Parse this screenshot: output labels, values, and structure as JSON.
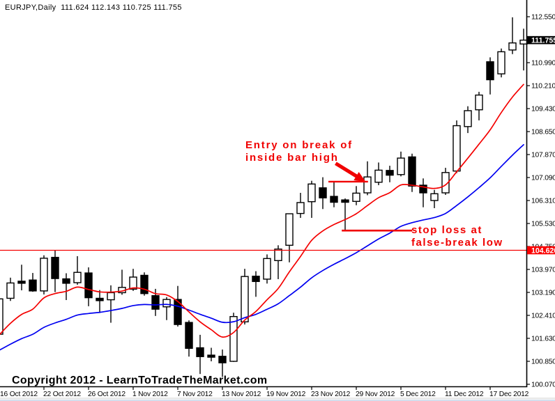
{
  "header": {
    "symbol_period": "EURJPY,Daily",
    "spacer": "  ",
    "ohlc_text": "111.624 112.143 110.725 111.755"
  },
  "watermark": "Copyright 2012 - LearnToTradeTheMarket.com",
  "annotations": {
    "entry_text_line1": "Entry on break of",
    "entry_text_line2": "inside bar high",
    "stop_text_line1": "stop loss at",
    "stop_text_line2": "false-break low"
  },
  "colors": {
    "background": "#ffffff",
    "bull_candle_fill": "#ffffff",
    "bear_candle_fill": "#000000",
    "candle_outline": "#000000",
    "ema_fast": "#f40000",
    "ema_slow": "#0000f0",
    "hline": "#f40000",
    "annotation": "#f00000",
    "axis": "#000000",
    "current_price_box_bg": "#000000",
    "current_price_box_text": "#ffffff",
    "hline_price_box_bg": "#fa0000",
    "hline_price_box_text": "#ffffff"
  },
  "chart_data": {
    "type": "candlestick",
    "symbol": "EURJPY",
    "timeframe": "Daily",
    "last_ohlc": {
      "open": 111.624,
      "high": 112.143,
      "low": 110.725,
      "close": 111.755
    },
    "y_axis": {
      "tick_values": [
        100.07,
        100.85,
        101.63,
        102.41,
        103.19,
        103.97,
        104.75,
        105.53,
        106.31,
        107.09,
        107.87,
        108.65,
        109.43,
        110.21,
        110.99,
        111.77,
        112.55
      ],
      "tick_decimals": 3,
      "current_price": 111.755,
      "hline_price": 104.62
    },
    "x_axis": {
      "tick_every_n_candles": 4,
      "tick_labels": [
        "16 Oct 2012",
        "22 Oct 2012",
        "26 Oct 2012",
        "1 Nov 2012",
        "7 Nov 2012",
        "13 Nov 2012",
        "19 Nov 2012",
        "23 Nov 2012",
        "29 Nov 2012",
        "5 Dec 2012",
        "11 Dec 2012",
        "17 Dec 2012"
      ]
    },
    "candles": [
      {
        "date": "16 Oct 2012",
        "o": 101.77,
        "h": 102.98,
        "l": 101.72,
        "c": 102.97
      },
      {
        "date": "17 Oct 2012",
        "o": 102.99,
        "h": 103.69,
        "l": 102.9,
        "c": 103.51
      },
      {
        "date": "18 Oct 2012",
        "o": 103.57,
        "h": 104.13,
        "l": 103.26,
        "c": 103.5
      },
      {
        "date": "19 Oct 2012",
        "o": 103.61,
        "h": 103.85,
        "l": 103.21,
        "c": 103.24
      },
      {
        "date": "22 Oct 2012",
        "o": 103.24,
        "h": 104.45,
        "l": 103.12,
        "c": 104.35
      },
      {
        "date": "23 Oct 2012",
        "o": 104.38,
        "h": 104.62,
        "l": 103.2,
        "c": 103.66
      },
      {
        "date": "24 Oct 2012",
        "o": 103.65,
        "h": 103.84,
        "l": 102.93,
        "c": 103.5
      },
      {
        "date": "25 Oct 2012",
        "o": 103.52,
        "h": 104.42,
        "l": 103.45,
        "c": 103.87
      },
      {
        "date": "26 Oct 2012",
        "o": 103.85,
        "h": 104.04,
        "l": 102.72,
        "c": 103.01
      },
      {
        "date": "29 Oct 2012",
        "o": 102.99,
        "h": 103.27,
        "l": 102.49,
        "c": 102.91
      },
      {
        "date": "30 Oct 2012",
        "o": 102.94,
        "h": 103.43,
        "l": 102.16,
        "c": 103.18
      },
      {
        "date": "31 Oct 2012",
        "o": 103.18,
        "h": 103.96,
        "l": 103.11,
        "c": 103.36
      },
      {
        "date": "1 Nov 2012",
        "o": 103.3,
        "h": 103.99,
        "l": 103.24,
        "c": 103.71
      },
      {
        "date": "2 Nov 2012",
        "o": 103.77,
        "h": 103.87,
        "l": 103.08,
        "c": 103.15
      },
      {
        "date": "5 Nov 2012",
        "o": 103.08,
        "h": 103.31,
        "l": 102.39,
        "c": 102.62
      },
      {
        "date": "6 Nov 2012",
        "o": 102.7,
        "h": 103.03,
        "l": 102.25,
        "c": 102.95
      },
      {
        "date": "7 Nov 2012",
        "o": 102.95,
        "h": 103.41,
        "l": 102.03,
        "c": 102.1
      },
      {
        "date": "8 Nov 2012",
        "o": 102.17,
        "h": 102.24,
        "l": 101.01,
        "c": 101.29
      },
      {
        "date": "9 Nov 2012",
        "o": 101.31,
        "h": 101.75,
        "l": 100.42,
        "c": 101.01
      },
      {
        "date": "12 Nov 2012",
        "o": 101.06,
        "h": 101.31,
        "l": 100.85,
        "c": 100.99
      },
      {
        "date": "13 Nov 2012",
        "o": 101.02,
        "h": 101.25,
        "l": 100.32,
        "c": 100.8
      },
      {
        "date": "14 Nov 2012",
        "o": 100.85,
        "h": 102.5,
        "l": 100.83,
        "c": 102.37
      },
      {
        "date": "15 Nov 2012",
        "o": 102.19,
        "h": 103.99,
        "l": 102.1,
        "c": 103.73
      },
      {
        "date": "16 Nov 2012",
        "o": 103.74,
        "h": 103.91,
        "l": 103.04,
        "c": 103.56
      },
      {
        "date": "19 Nov 2012",
        "o": 103.64,
        "h": 104.48,
        "l": 103.49,
        "c": 104.34
      },
      {
        "date": "20 Nov 2012",
        "o": 104.27,
        "h": 104.79,
        "l": 103.64,
        "c": 104.66
      },
      {
        "date": "21 Nov 2012",
        "o": 104.79,
        "h": 105.87,
        "l": 104.21,
        "c": 105.86
      },
      {
        "date": "22 Nov 2012",
        "o": 105.87,
        "h": 106.57,
        "l": 105.72,
        "c": 106.24
      },
      {
        "date": "23 Nov 2012",
        "o": 106.27,
        "h": 106.98,
        "l": 105.72,
        "c": 106.87
      },
      {
        "date": "26 Nov 2012",
        "o": 106.74,
        "h": 107.1,
        "l": 106.02,
        "c": 106.4
      },
      {
        "date": "27 Nov 2012",
        "o": 106.45,
        "h": 106.93,
        "l": 106.08,
        "c": 106.25
      },
      {
        "date": "28 Nov 2012",
        "o": 106.33,
        "h": 106.38,
        "l": 105.28,
        "c": 106.25
      },
      {
        "date": "29 Nov 2012",
        "o": 106.28,
        "h": 106.8,
        "l": 106.15,
        "c": 106.56
      },
      {
        "date": "30 Nov 2012",
        "o": 106.57,
        "h": 107.64,
        "l": 106.49,
        "c": 107.11
      },
      {
        "date": "3 Dec 2012",
        "o": 106.93,
        "h": 107.6,
        "l": 106.83,
        "c": 107.34
      },
      {
        "date": "4 Dec 2012",
        "o": 107.33,
        "h": 107.49,
        "l": 106.93,
        "c": 107.17
      },
      {
        "date": "5 Dec 2012",
        "o": 107.19,
        "h": 107.97,
        "l": 107.13,
        "c": 107.75
      },
      {
        "date": "6 Dec 2012",
        "o": 107.79,
        "h": 107.9,
        "l": 106.6,
        "c": 106.8
      },
      {
        "date": "7 Dec 2012",
        "o": 106.83,
        "h": 107.06,
        "l": 106.08,
        "c": 106.57
      },
      {
        "date": "10 Dec 2012",
        "o": 106.31,
        "h": 106.67,
        "l": 106.05,
        "c": 106.54
      },
      {
        "date": "11 Dec 2012",
        "o": 106.57,
        "h": 107.42,
        "l": 106.5,
        "c": 107.26
      },
      {
        "date": "12 Dec 2012",
        "o": 107.31,
        "h": 109.03,
        "l": 107.24,
        "c": 108.85
      },
      {
        "date": "13 Dec 2012",
        "o": 108.82,
        "h": 109.51,
        "l": 108.6,
        "c": 109.36
      },
      {
        "date": "14 Dec 2012",
        "o": 109.39,
        "h": 110.0,
        "l": 109.03,
        "c": 109.89
      },
      {
        "date": "17 Dec 2012",
        "o": 111.02,
        "h": 111.17,
        "l": 109.91,
        "c": 110.41
      },
      {
        "date": "18 Dec 2012",
        "o": 110.61,
        "h": 111.47,
        "l": 110.49,
        "c": 111.36
      },
      {
        "date": "19 Dec 2012",
        "o": 111.42,
        "h": 112.53,
        "l": 111.28,
        "c": 111.66
      },
      {
        "date": "20 Dec 2012",
        "o": 111.624,
        "h": 112.143,
        "l": 110.725,
        "c": 111.755
      }
    ],
    "series": [
      {
        "name": "ema_fast",
        "color": "#f40000",
        "values": [
          101.749,
          102.14,
          102.442,
          102.62,
          103.004,
          103.15,
          103.228,
          103.37,
          103.29,
          103.206,
          103.2,
          103.236,
          103.341,
          103.299,
          103.148,
          103.104,
          102.881,
          102.527,
          102.19,
          101.923,
          101.674,
          101.828,
          102.251,
          102.542,
          102.941,
          103.323,
          103.887,
          104.41,
          104.957,
          105.277,
          105.494,
          105.662,
          105.861,
          106.139,
          106.406,
          106.576,
          106.837,
          106.828,
          106.771,
          106.72,
          106.84,
          107.286,
          107.747,
          108.223,
          108.709,
          109.298,
          109.823,
          110.252
        ]
      },
      {
        "name": "ema_slow",
        "color": "#0000f0",
        "values": [
          101.225,
          101.432,
          101.62,
          101.768,
          102.002,
          102.153,
          102.275,
          102.42,
          102.474,
          102.514,
          102.574,
          102.646,
          102.742,
          102.779,
          102.765,
          102.782,
          102.72,
          102.59,
          102.446,
          102.314,
          102.176,
          102.194,
          102.333,
          102.445,
          102.617,
          102.803,
          103.081,
          103.368,
          103.686,
          103.933,
          104.144,
          104.335,
          104.537,
          104.771,
          105.005,
          105.202,
          105.433,
          105.558,
          105.65,
          105.731,
          105.87,
          106.141,
          106.433,
          106.747,
          107.08,
          107.469,
          107.85,
          108.205
        ]
      }
    ],
    "drawings": {
      "hline": {
        "price": 104.62
      },
      "entry_line": {
        "price": 106.95,
        "from_index": 29.5,
        "to_index": 33.05
      },
      "stop_line": {
        "price": 105.29,
        "from_index": 30.7,
        "to_index": 37.0
      },
      "arrow": {
        "from_index": 30.15,
        "from_price": 107.57,
        "to_index": 32.85,
        "to_price": 106.94
      }
    }
  }
}
